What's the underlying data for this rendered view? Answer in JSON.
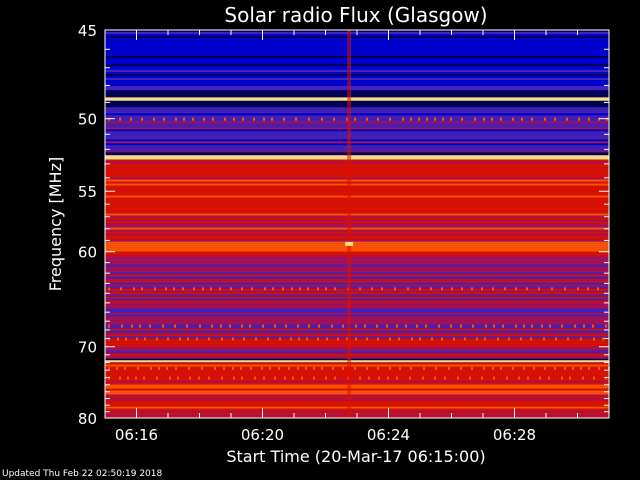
{
  "title": "Solar radio Flux (Glasgow)",
  "footer": "Updated Thu Feb 22 02:50:19 2018",
  "chart_data": {
    "type": "heatmap",
    "title": "Solar radio Flux (Glasgow)",
    "xlabel": "Start Time (20-Mar-17 06:15:00)",
    "ylabel": "Frequency [MHz]",
    "xlim": [
      "06:15:00",
      "06:31:00"
    ],
    "ylim": [
      45,
      80
    ],
    "x_ticks": [
      "06:16",
      "06:20",
      "06:24",
      "06:28"
    ],
    "y_ticks": [
      45,
      50,
      55,
      60,
      70,
      80
    ],
    "y_scale": "reciprocal",
    "colormap": [
      "#000055",
      "#0000cc",
      "#4422bb",
      "#aa1155",
      "#dd1100",
      "#ff5500",
      "#ffdd88"
    ],
    "bands": [
      {
        "from_mhz": 45.0,
        "to_mhz": 48.3,
        "level": "low"
      },
      {
        "from_mhz": 48.7,
        "to_mhz": 48.9,
        "level": "saturated"
      },
      {
        "from_mhz": 49.3,
        "to_mhz": 52.2,
        "level": "low-medium"
      },
      {
        "from_mhz": 52.4,
        "to_mhz": 52.7,
        "level": "saturated"
      },
      {
        "from_mhz": 52.7,
        "to_mhz": 61.0,
        "level": "high"
      },
      {
        "from_mhz": 61.0,
        "to_mhz": 71.5,
        "level": "medium"
      },
      {
        "from_mhz": 71.7,
        "to_mhz": 71.9,
        "level": "saturated"
      },
      {
        "from_mhz": 72.0,
        "to_mhz": 80.0,
        "level": "medium-high"
      }
    ],
    "features": [
      {
        "type": "vertical-streak",
        "time": "06:22:45",
        "level": "high"
      },
      {
        "type": "spot",
        "time": "06:22:45",
        "freq_mhz": 59.3,
        "level": "saturated"
      }
    ]
  }
}
